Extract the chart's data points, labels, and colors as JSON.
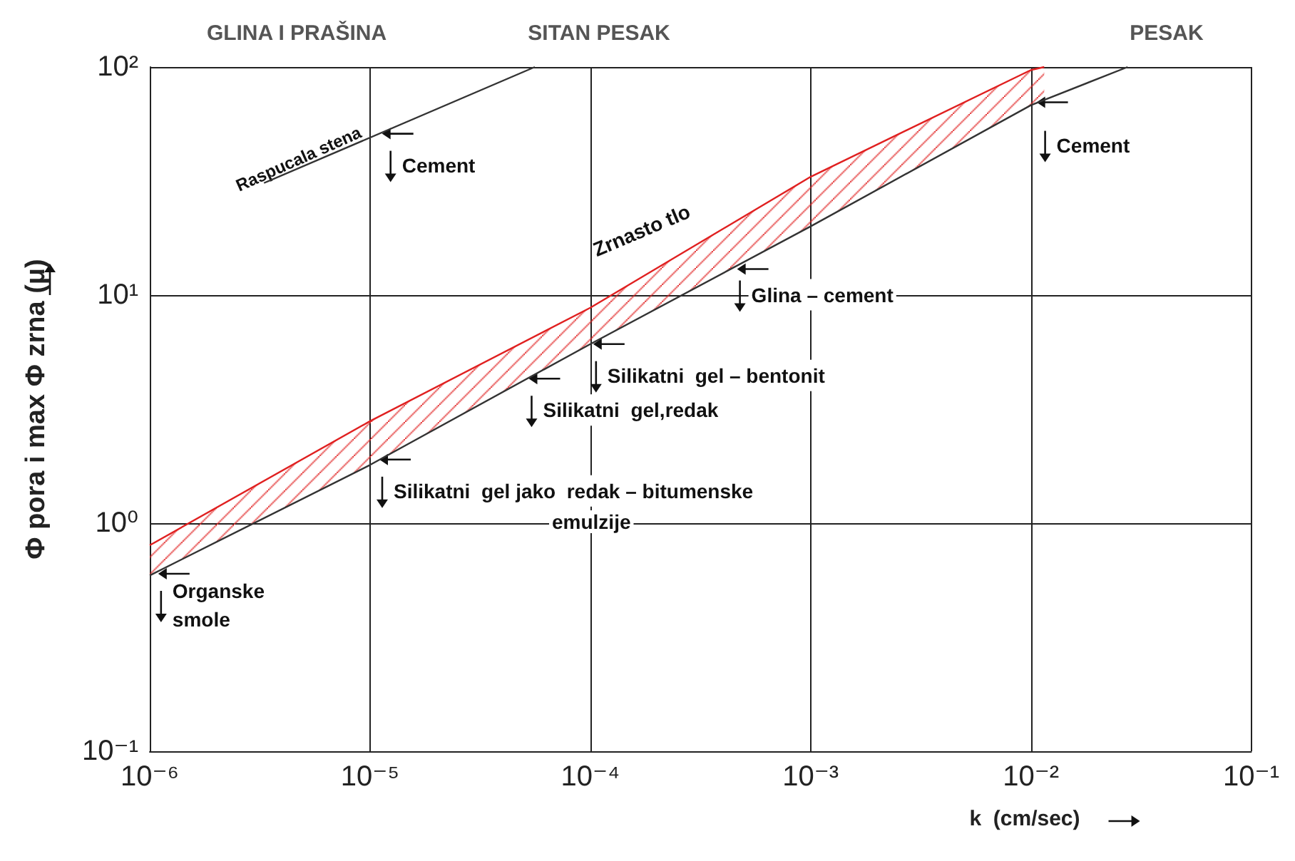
{
  "chart_data": {
    "type": "line",
    "xlabel": "k  (cm/sec)",
    "ylabel": "Φ pora i max Φ zrna (μ)",
    "log": "xy",
    "grid": true,
    "marker": "none",
    "line_style": "solid",
    "xlim": [
      1e-06,
      0.1
    ],
    "ylim": [
      0.1,
      100
    ],
    "xticks": [
      {
        "value": 1e-06,
        "label": "10⁻⁶"
      },
      {
        "value": 1e-05,
        "label": "10⁻⁵"
      },
      {
        "value": 0.0001,
        "label": "10⁻⁴"
      },
      {
        "value": 0.001,
        "label": "10⁻³"
      },
      {
        "value": 0.01,
        "label": "10⁻²"
      },
      {
        "value": 0.1,
        "label": "10⁻¹"
      }
    ],
    "yticks": [
      {
        "value": 0.1,
        "label": "10⁻¹"
      },
      {
        "value": 1,
        "label": "10⁰"
      },
      {
        "value": 10,
        "label": "10¹"
      },
      {
        "value": 100,
        "label": "10²"
      }
    ],
    "series": [
      {
        "color": "#e02020",
        "x": [
          1e-06,
          1e-05,
          0.0001,
          0.001,
          0.01,
          0.0115
        ],
        "values": [
          0.8,
          2.8,
          8.8,
          33,
          97,
          100
        ],
        "lower": [
          0.59,
          1.8,
          6.1,
          20,
          68,
          73
        ],
        "upper": [
          0.8,
          2.8,
          8.8,
          33,
          97,
          100
        ]
      },
      {
        "color": "#333333",
        "x": [
          1e-06,
          1e-05,
          0.0001,
          0.001,
          0.01,
          0.0275
        ],
        "values": [
          0.59,
          1.8,
          6.1,
          20,
          68,
          100
        ]
      },
      {
        "color": "#333333",
        "x": [
          3.3e-06,
          5.6e-05
        ],
        "values": [
          31,
          100
        ]
      }
    ],
    "annotations": [
      "GLINA I PRAŠINA",
      "SITAN PESAK",
      "PESAK",
      {
        "text": "Raspucala stena",
        "x": 4.8e-06,
        "y": 36
      },
      {
        "text": "Cement",
        "x": 1.1e-05,
        "y": 51
      },
      {
        "text": "Zrnasto tlo",
        "x": 0.0002,
        "y": 13
      },
      {
        "text": "Glina – cement",
        "x": 0.00045,
        "y": 13
      },
      {
        "text": "Silikatni  gel – bentonit",
        "x": 0.0001,
        "y": 6.1
      },
      {
        "text": "Silikatni  gel,redak",
        "x": 5.1e-05,
        "y": 4.3
      },
      {
        "text": "Silikatni  gel jako  redak – bitumenske",
        "x": 1.07e-05,
        "y": 1.9
      },
      "emulzije",
      {
        "text": "Organske\nsmole",
        "x": 1.06e-06,
        "y": 0.6
      },
      {
        "text": "Cement",
        "x": 0.0103,
        "y": 70
      }
    ]
  }
}
